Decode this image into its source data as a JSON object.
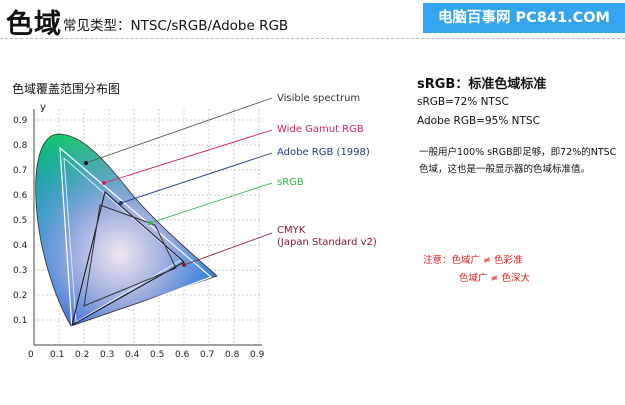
{
  "header": {
    "title": "色域",
    "subtitle": "常见类型：NTSC/sRGB/Adobe RGB",
    "brand": "电脑百事网 PC841.COM"
  },
  "diagram": {
    "title": "色域覆盖范围分布图",
    "y_axis": "y",
    "y_ticks": [
      "0.9",
      "0.8",
      "0.7",
      "0.6",
      "0.5",
      "0.4",
      "0.3",
      "0.2",
      "0.1"
    ],
    "x_ticks": [
      "0",
      "0.1",
      "0.2",
      "0.3",
      "0.4",
      "0.5",
      "0.6",
      "0.7",
      "0.8",
      "0.9"
    ],
    "labels": {
      "visible": "Visible spectrum",
      "wide": "Wide Gamut RGB",
      "adobe": "Adobe RGB (1998)",
      "srgb": "sRGB",
      "cmyk1": "CMYK",
      "cmyk2": "(Japan Standard v2)"
    },
    "label_colors": {
      "visible": "#333333",
      "wide": "#d8206a",
      "adobe": "#1f3a8a",
      "srgb": "#33b24a",
      "cmyk": "#8a1a30"
    }
  },
  "info": {
    "title": "sRGB：标准色域标准",
    "line1": "sRGB=72% NTSC",
    "line2": "Adobe RGB=95% NTSC",
    "para": "一般用户100% sRGB即足够，即72%的NTSC色域，这也是一般显示器的色域标准值。",
    "note1": "注意：色域广 ≠ 色彩准",
    "note2": "色域广 ≠ 色深大",
    "note_color": "#e0201a"
  }
}
